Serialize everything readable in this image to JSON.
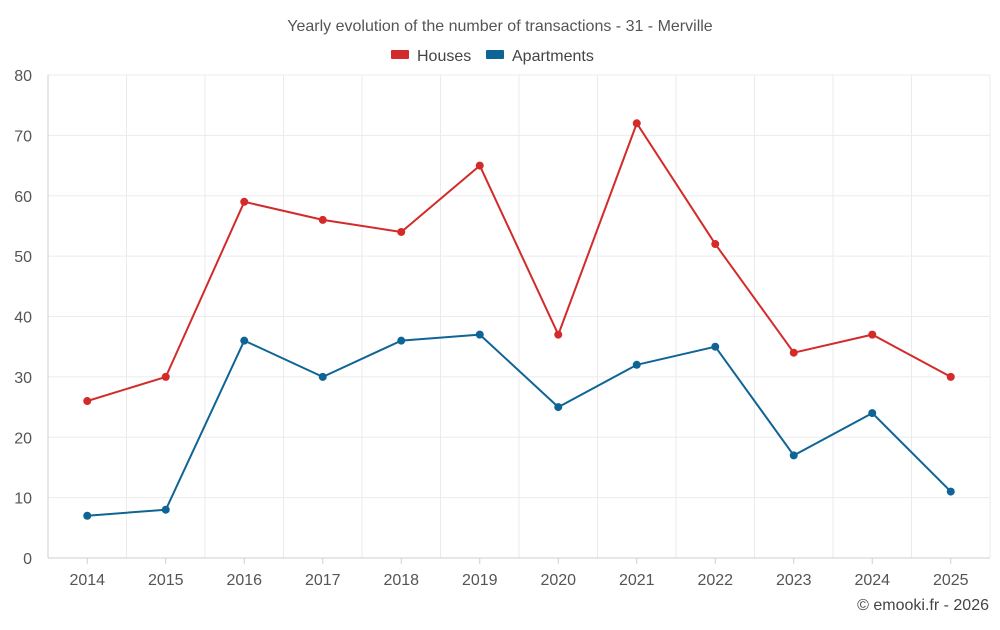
{
  "chart_data": {
    "type": "line",
    "title": "Yearly evolution of the number of transactions - 31 - Merville",
    "categories": [
      "2014",
      "2015",
      "2016",
      "2017",
      "2018",
      "2019",
      "2020",
      "2021",
      "2022",
      "2023",
      "2024",
      "2025"
    ],
    "series": [
      {
        "name": "Houses",
        "color": "#d32a2a",
        "values": [
          26,
          30,
          59,
          56,
          54,
          65,
          37,
          72,
          52,
          34,
          37,
          30
        ]
      },
      {
        "name": "Apartments",
        "color": "#0f6496",
        "values": [
          7,
          8,
          36,
          30,
          36,
          37,
          25,
          32,
          35,
          17,
          24,
          11
        ]
      }
    ],
    "ylim": [
      0,
      80
    ],
    "yticks": [
      0,
      10,
      20,
      30,
      40,
      50,
      60,
      70,
      80
    ],
    "xlabel": "",
    "ylabel": "",
    "grid": true,
    "legend": "top-center"
  },
  "footer": {
    "credit": "© emooki.fr - 2026"
  }
}
